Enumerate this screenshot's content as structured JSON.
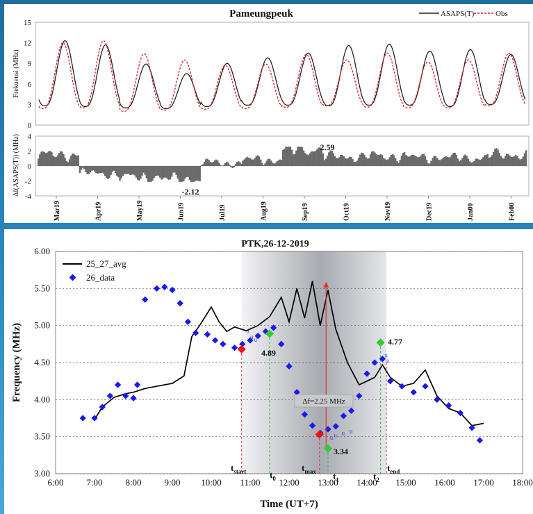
{
  "colors": {
    "asaps": "#222222",
    "obs": "#e01818",
    "delta": "#6b6b6b",
    "avg": "#000000",
    "data26": "#1a1aee",
    "red_point": "#ee1111",
    "green_point": "#33cc33",
    "window": "#9aa0aa"
  },
  "top_chart": {
    "title": "Pameungpeuk",
    "legend": [
      "ASAPS(T)",
      "Obs"
    ],
    "ylabel_top": "Frekuensi (MHz)",
    "ylabel_bottom": "Δf(ASAPS(T)) (MHz)",
    "yticks_top": [
      "15",
      "12",
      "9",
      "6",
      "3",
      "0"
    ],
    "yticks_bottom": [
      "4",
      "2",
      "0",
      "-2",
      "-4"
    ],
    "months": [
      "Mar19",
      "Apr19",
      "May19",
      "Jun19",
      "Jul19",
      "Aug19",
      "Sep19",
      "Oct19",
      "Nov19",
      "Dec19",
      "Jan00",
      "Feb00"
    ],
    "annot_max": "2.59",
    "annot_min": "-2.12"
  },
  "bottom_chart": {
    "title": "PTK,26-12-2019",
    "ylabel": "Frequency (MHz)",
    "xlabel": "Time (UT+7)",
    "xticks": [
      "6:00",
      "7:00",
      "8:00",
      "9:00",
      "10:00",
      "11:00",
      "12:00",
      "13:00",
      "14:00",
      "15:00",
      "16:00",
      "17:00",
      "18:00"
    ],
    "yticks": [
      "6.00",
      "5.50",
      "5.00",
      "4.50",
      "4.00",
      "3.50",
      "3.00"
    ],
    "legend": [
      "25_27_avg",
      "26_data"
    ],
    "annotations": {
      "v489": "4.89",
      "v477": "4.77",
      "v334": "3.34",
      "delta_f": "Δf=2.25 MHz"
    },
    "time_labels": {
      "start_main": "t",
      "start_sub": "start",
      "t0_main": "t",
      "t0_sub": "0",
      "max_main": "t",
      "max_sub": "max",
      "t1_main": "t",
      "t1_sub": "1",
      "t2_main": "t",
      "t2_sub": "2",
      "end_main": "t",
      "end_sub": "end"
    }
  },
  "chart_data": [
    {
      "type": "line",
      "title": "Pameungpeuk",
      "ylabel": "Frekuensi (MHz)",
      "ylim": [
        0,
        15
      ],
      "x_categories": [
        "Mar19",
        "Apr19",
        "May19",
        "Jun19",
        "Jul19",
        "Aug19",
        "Sep19",
        "Oct19",
        "Nov19",
        "Dec19",
        "Jan00",
        "Feb00"
      ],
      "series": [
        {
          "name": "ASAPS(T)",
          "daily_max": [
            12.3,
            11.7,
            8.9,
            7.5,
            9.0,
            9.8,
            10.5,
            11.6,
            11.8,
            10.8,
            11.0,
            10.3
          ],
          "daily_min": [
            2.8,
            2.7,
            2.5,
            2.4,
            2.7,
            2.9,
            2.9,
            2.8,
            2.9,
            2.9,
            2.7,
            3.0
          ]
        },
        {
          "name": "Obs",
          "daily_max": [
            12.0,
            12.3,
            10.4,
            9.5,
            8.7,
            8.9,
            10.3,
            9.5,
            10.5,
            9.2,
            9.5,
            10.5
          ],
          "daily_min": [
            2.4,
            2.5,
            2.0,
            2.2,
            2.3,
            2.4,
            2.6,
            2.8,
            2.6,
            2.5,
            2.5,
            2.8
          ]
        }
      ]
    },
    {
      "type": "bar",
      "ylabel": "Δf(ASAPS(T)) (MHz)",
      "ylim": [
        -4,
        4
      ],
      "x_categories": [
        "Mar19",
        "Apr19",
        "May19",
        "Jun19",
        "Jul19",
        "Aug19",
        "Sep19",
        "Oct19",
        "Nov19",
        "Dec19",
        "Jan00",
        "Feb00"
      ],
      "series": [
        {
          "name": "Δf",
          "representative": [
            1.8,
            -1.2,
            -1.8,
            -2.1,
            0.5,
            1.0,
            2.59,
            1.5,
            1.6,
            1.4,
            1.3,
            1.8
          ]
        }
      ],
      "annotations": {
        "max": 2.59,
        "min": -2.12
      }
    },
    {
      "type": "line",
      "title": "PTK,26-12-2019",
      "xlabel": "Time (UT+7)",
      "ylabel": "Frequency (MHz)",
      "xlim": [
        6,
        18
      ],
      "ylim": [
        3.0,
        6.0
      ],
      "series": [
        {
          "name": "25_27_avg",
          "x": [
            7.0,
            7.2,
            7.5,
            7.8,
            8.0,
            8.3,
            8.6,
            9.0,
            9.3,
            9.5,
            9.7,
            10.0,
            10.2,
            10.4,
            10.6,
            10.9,
            11.2,
            11.5,
            11.8,
            12.0,
            12.2,
            12.4,
            12.6,
            12.8,
            13.0,
            13.2,
            13.5,
            13.8,
            14.0,
            14.2,
            14.4,
            14.6,
            14.9,
            15.2,
            15.5,
            15.8,
            16.1,
            16.4,
            16.7,
            17.0
          ],
          "y": [
            3.73,
            3.9,
            4.03,
            4.08,
            4.1,
            4.15,
            4.18,
            4.22,
            4.32,
            4.85,
            5.0,
            5.25,
            5.05,
            4.92,
            4.98,
            4.93,
            5.0,
            5.12,
            5.38,
            5.05,
            5.5,
            5.1,
            5.6,
            5.0,
            5.48,
            4.95,
            4.5,
            4.2,
            4.25,
            4.3,
            4.47,
            4.3,
            4.18,
            4.22,
            4.4,
            4.05,
            3.88,
            3.82,
            3.65,
            3.68
          ]
        },
        {
          "name": "26_data",
          "x": [
            6.7,
            7.0,
            7.2,
            7.4,
            7.6,
            7.8,
            8.0,
            8.1,
            8.3,
            8.6,
            8.8,
            9.0,
            9.2,
            9.4,
            9.6,
            9.9,
            10.1,
            10.3,
            10.6,
            10.8,
            11.0,
            11.2,
            11.4,
            11.6,
            11.8,
            12.0,
            12.2,
            12.4,
            12.6,
            12.8,
            13.0,
            13.2,
            13.4,
            13.6,
            13.8,
            14.0,
            14.2,
            14.4,
            14.6,
            14.9,
            15.2,
            15.5,
            15.8,
            16.1,
            16.4,
            16.7,
            16.9
          ],
          "y": [
            3.75,
            3.75,
            3.9,
            4.05,
            4.2,
            4.05,
            4.02,
            4.2,
            5.35,
            5.5,
            5.52,
            5.48,
            5.3,
            5.05,
            4.9,
            4.88,
            4.8,
            4.75,
            4.7,
            4.75,
            4.8,
            4.86,
            4.92,
            4.97,
            4.75,
            4.45,
            4.1,
            3.8,
            3.65,
            3.55,
            3.6,
            3.64,
            3.78,
            3.85,
            4.05,
            4.35,
            4.5,
            4.55,
            4.25,
            4.18,
            4.1,
            4.18,
            4.0,
            3.92,
            3.82,
            3.62,
            3.45
          ]
        }
      ],
      "points": {
        "t_start": [
          10.78,
          4.68
        ],
        "t0": [
          11.5,
          4.89
        ],
        "t_max": [
          12.78,
          3.53
        ],
        "t1": [
          13.0,
          3.34
        ],
        "t2": [
          14.35,
          4.77
        ],
        "t_end": [
          14.5,
          4.5
        ]
      },
      "window_hours": [
        10.78,
        14.5
      ],
      "delta_f": 2.25
    }
  ]
}
